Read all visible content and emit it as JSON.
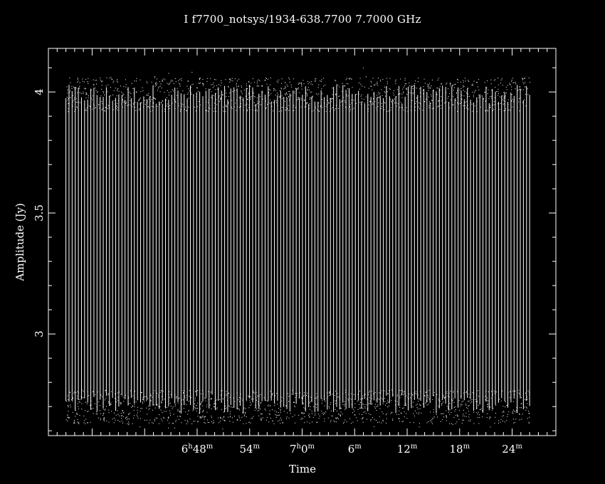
{
  "chart_data": {
    "type": "scatter",
    "title": "I f7700_notsys/1934-638.7700 7.7000 GHz",
    "xlabel": "Time",
    "ylabel": "Amplitude (Jy)",
    "x_range_minutes": [
      "06:31",
      "07:29"
    ],
    "ylim": [
      2.58,
      4.18
    ],
    "y_ticks": [
      {
        "value": 3,
        "label": "3"
      },
      {
        "value": 3.5,
        "label": "3.5"
      },
      {
        "value": 4,
        "label": "4"
      }
    ],
    "x_ticks": [
      {
        "time": "06:48",
        "h": "6",
        "m": "48"
      },
      {
        "time": "06:54",
        "h": "",
        "m": "54"
      },
      {
        "time": "07:00",
        "h": "7",
        "m": "0"
      },
      {
        "time": "07:06",
        "h": "",
        "m": "6"
      },
      {
        "time": "07:12",
        "h": "",
        "m": "12"
      },
      {
        "time": "07:18",
        "h": "",
        "m": "18"
      },
      {
        "time": "07:24",
        "h": "",
        "m": "24"
      }
    ],
    "series": [
      {
        "time_start": "06:33",
        "time_end": "07:26",
        "low_band": [
          2.67,
          2.75
        ],
        "high_band": [
          3.95,
          4.03
        ],
        "line_count": 150
      }
    ],
    "grid": false,
    "legend": "none"
  },
  "colors": {
    "background": "#000000",
    "foreground": "#ffffff"
  }
}
